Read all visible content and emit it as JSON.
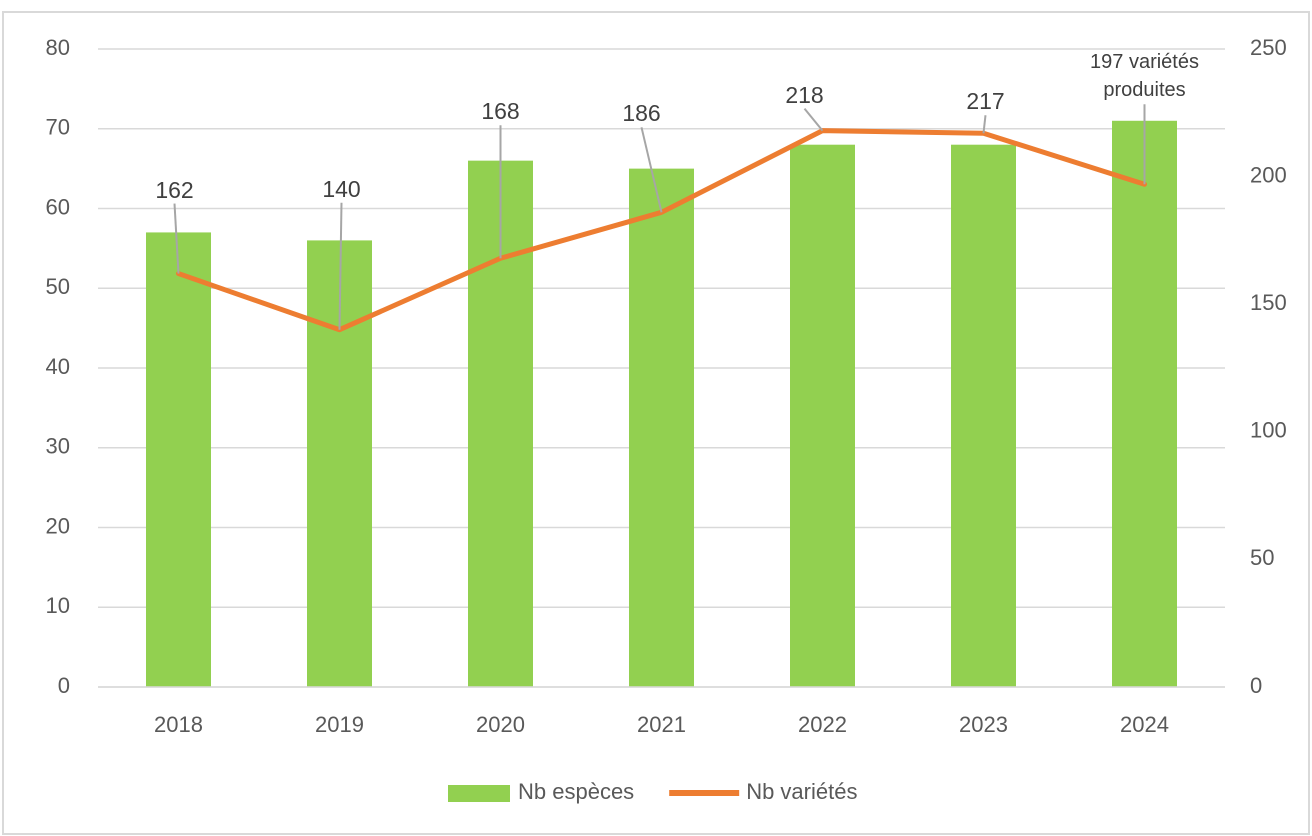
{
  "chart_data": {
    "type": "bar-line",
    "categories": [
      "2018",
      "2019",
      "2020",
      "2021",
      "2022",
      "2023",
      "2024"
    ],
    "series": [
      {
        "name": "Nb espèces",
        "type": "bar",
        "color": "#92d050",
        "values": [
          57,
          56,
          66,
          65,
          68,
          68,
          71
        ]
      },
      {
        "name": "Nb variétés",
        "type": "line",
        "axis": "y2",
        "color": "#ed7d31",
        "values": [
          162,
          140,
          168,
          186,
          218,
          217,
          197
        ],
        "value_labels": [
          "162",
          "140",
          "168",
          "186",
          "218",
          "217",
          "197 variétés produites"
        ]
      }
    ],
    "ylim": [
      0,
      80
    ],
    "yticks": [
      0,
      10,
      20,
      30,
      40,
      50,
      60,
      70,
      80
    ],
    "y2lim": [
      0,
      250
    ],
    "y2ticks": [
      0,
      50,
      100,
      150,
      200,
      250
    ],
    "grid": true,
    "legend": "bottom"
  }
}
